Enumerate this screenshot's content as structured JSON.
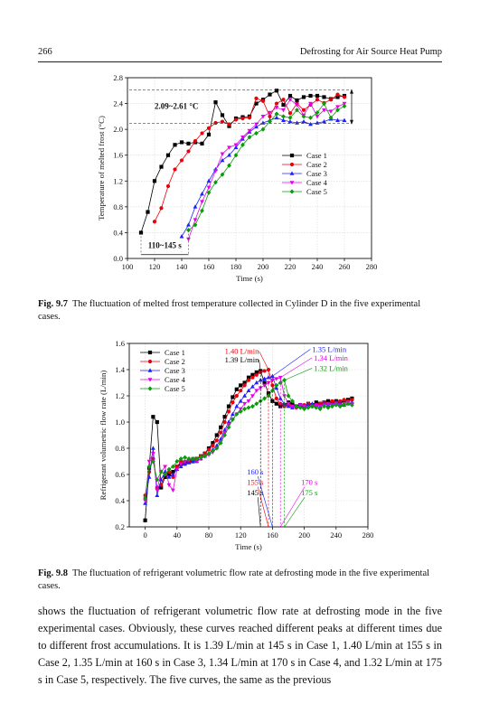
{
  "header": {
    "page_number": "266",
    "running_title": "Defrosting for Air Source Heat Pump"
  },
  "figure_9_7": {
    "caption_label": "Fig. 9.7",
    "caption_text": "The fluctuation of melted frost temperature collected in Cylinder D in the five experimental cases."
  },
  "figure_9_8": {
    "caption_label": "Fig. 9.8",
    "caption_text": "The fluctuation of refrigerant volumetric flow rate at defrosting mode in the five experimental cases."
  },
  "body_text": "shows the fluctuation of refrigerant volumetric flow rate at defrosting mode in the five experimental cases. Obviously, these curves reached different peaks at different times due to different frost accumulations. It is 1.39 L/min at 145 s in Case 1, 1.40 L/min at 155 s in Case 2, 1.35 L/min at 160 s in Case 3, 1.34 L/min at 170 s in Case 4, and 1.32 L/min at 175 s in Case 5, respectively. The five curves, the same as the previous",
  "chart_data": [
    {
      "type": "line",
      "title": "",
      "xlabel": "Time (s)",
      "ylabel": "Temperature of melted frost (°C)",
      "xlim": [
        100,
        280
      ],
      "ylim": [
        0.0,
        2.8
      ],
      "x_ticks": [
        "100",
        "120",
        "140",
        "160",
        "180",
        "200",
        "220",
        "240",
        "260",
        "280"
      ],
      "y_ticks": [
        "0.0",
        "0.4",
        "0.8",
        "1.2",
        "1.6",
        "2.0",
        "2.4",
        "2.8"
      ],
      "legend_position": "right",
      "grid": true,
      "annotations": [
        {
          "text": "2.09~2.61 °C",
          "y_range": [
            2.09,
            2.61
          ]
        },
        {
          "text": "110~145 s",
          "x_range": [
            110,
            145
          ]
        }
      ],
      "series": [
        {
          "name": "Case 1",
          "color": "#000000",
          "marker": "square",
          "x": [
            110,
            115,
            120,
            125,
            130,
            135,
            140,
            145,
            150,
            155,
            160,
            165,
            170,
            175,
            180,
            185,
            190,
            195,
            200,
            205,
            210,
            215,
            220,
            225,
            230,
            235,
            240,
            245,
            250,
            255,
            260
          ],
          "y": [
            0.4,
            0.72,
            1.2,
            1.42,
            1.6,
            1.76,
            1.8,
            1.78,
            1.8,
            1.78,
            1.92,
            2.42,
            2.22,
            2.05,
            2.17,
            2.19,
            2.2,
            2.4,
            2.46,
            2.54,
            2.6,
            2.38,
            2.52,
            2.45,
            2.5,
            2.52,
            2.52,
            2.5,
            2.47,
            2.5,
            2.52
          ]
        },
        {
          "name": "Case 2",
          "color": "#e8000b",
          "marker": "circle",
          "x": [
            120,
            125,
            130,
            135,
            140,
            145,
            150,
            155,
            160,
            165,
            170,
            175,
            180,
            185,
            190,
            195,
            200,
            205,
            210,
            215,
            220,
            225,
            230,
            235,
            240,
            245,
            250,
            255,
            260
          ],
          "y": [
            0.57,
            0.78,
            1.12,
            1.38,
            1.52,
            1.66,
            1.82,
            1.94,
            2.02,
            2.1,
            2.12,
            2.08,
            2.15,
            2.17,
            2.18,
            2.48,
            2.44,
            2.2,
            2.4,
            2.46,
            2.25,
            2.4,
            2.3,
            2.38,
            2.46,
            2.41,
            2.46,
            2.54,
            2.5
          ]
        },
        {
          "name": "Case 3",
          "color": "#1f1fff",
          "marker": "triangle-up",
          "x": [
            140,
            145,
            150,
            155,
            160,
            165,
            170,
            175,
            180,
            185,
            190,
            195,
            200,
            205,
            210,
            215,
            220,
            225,
            230,
            235,
            240,
            245,
            250,
            255,
            260
          ],
          "y": [
            0.34,
            0.52,
            0.8,
            1.0,
            1.2,
            1.38,
            1.52,
            1.6,
            1.72,
            1.85,
            1.96,
            2.04,
            2.1,
            2.14,
            2.18,
            2.14,
            2.12,
            2.1,
            2.12,
            2.08,
            2.1,
            2.12,
            2.16,
            2.14,
            2.14
          ]
        },
        {
          "name": "Case 4",
          "color": "#e800e8",
          "marker": "triangle-down",
          "x": [
            145,
            150,
            155,
            160,
            165,
            170,
            175,
            180,
            185,
            190,
            195,
            200,
            205,
            210,
            215,
            220,
            225,
            230,
            235,
            240,
            245,
            250,
            255,
            260
          ],
          "y": [
            0.3,
            0.6,
            0.88,
            1.1,
            1.36,
            1.62,
            1.72,
            1.76,
            1.88,
            1.98,
            2.08,
            2.2,
            2.26,
            2.34,
            2.3,
            2.46,
            2.38,
            2.22,
            2.4,
            2.2,
            2.3,
            2.28,
            2.35,
            2.4
          ]
        },
        {
          "name": "Case 5",
          "color": "#0a9a0a",
          "marker": "diamond",
          "x": [
            145,
            150,
            155,
            160,
            165,
            170,
            175,
            180,
            185,
            190,
            195,
            200,
            205,
            210,
            215,
            220,
            225,
            230,
            235,
            240,
            245,
            250,
            255,
            260
          ],
          "y": [
            0.44,
            0.52,
            0.74,
            1.02,
            1.18,
            1.3,
            1.44,
            1.6,
            1.76,
            1.88,
            1.94,
            2.0,
            2.12,
            2.24,
            2.2,
            2.18,
            2.3,
            2.2,
            2.18,
            2.26,
            2.4,
            2.18,
            2.3,
            2.36
          ]
        }
      ]
    },
    {
      "type": "line",
      "title": "",
      "xlabel": "Time (s)",
      "ylabel": "Refrigerant volumetric flow rate (L/min)",
      "xlim": [
        -20,
        280
      ],
      "ylim": [
        0.2,
        1.6
      ],
      "x_ticks": [
        "0",
        "40",
        "80",
        "120",
        "160",
        "200",
        "240",
        "280"
      ],
      "y_ticks": [
        "0.2",
        "0.4",
        "0.6",
        "0.8",
        "1.0",
        "1.2",
        "1.4",
        "1.6"
      ],
      "legend_position": "top-left",
      "grid": true,
      "peak_annotations": [
        {
          "label": "1.39 L/min",
          "time_label": "145 s",
          "series": "Case 1",
          "x": 145,
          "y": 1.39
        },
        {
          "label": "1.40 L/min",
          "time_label": "155 s",
          "series": "Case 2",
          "x": 155,
          "y": 1.4
        },
        {
          "label": "1.35 L/min",
          "time_label": "160 s",
          "series": "Case 3",
          "x": 160,
          "y": 1.35
        },
        {
          "label": "1.34 L/min",
          "time_label": "170 s",
          "series": "Case 4",
          "x": 170,
          "y": 1.34
        },
        {
          "label": "1.32 L/min",
          "time_label": "175 s",
          "series": "Case 5",
          "x": 175,
          "y": 1.32
        }
      ],
      "series": [
        {
          "name": "Case 1",
          "color": "#000000",
          "marker": "square",
          "x": [
            0,
            5,
            10,
            15,
            20,
            25,
            30,
            35,
            40,
            45,
            50,
            55,
            60,
            65,
            70,
            75,
            80,
            85,
            90,
            95,
            100,
            105,
            110,
            115,
            120,
            125,
            130,
            135,
            140,
            145,
            150,
            155,
            160,
            165,
            170,
            175,
            180,
            185,
            190,
            195,
            200,
            205,
            210,
            215,
            220,
            225,
            230,
            235,
            240,
            245,
            250,
            255,
            260
          ],
          "y": [
            0.25,
            0.65,
            1.04,
            1.0,
            0.5,
            0.58,
            0.6,
            0.62,
            0.66,
            0.68,
            0.69,
            0.7,
            0.7,
            0.72,
            0.74,
            0.76,
            0.8,
            0.84,
            0.9,
            0.96,
            1.04,
            1.12,
            1.19,
            1.25,
            1.28,
            1.3,
            1.34,
            1.36,
            1.38,
            1.39,
            1.3,
            1.22,
            1.16,
            1.14,
            1.12,
            1.13,
            1.15,
            1.14,
            1.12,
            1.13,
            1.12,
            1.14,
            1.13,
            1.15,
            1.14,
            1.15,
            1.16,
            1.15,
            1.16,
            1.15,
            1.16,
            1.17,
            1.18
          ]
        },
        {
          "name": "Case 2",
          "color": "#e8000b",
          "marker": "circle",
          "x": [
            0,
            5,
            10,
            15,
            20,
            25,
            30,
            35,
            40,
            45,
            50,
            55,
            60,
            65,
            70,
            75,
            80,
            85,
            90,
            95,
            100,
            105,
            110,
            115,
            120,
            125,
            130,
            135,
            140,
            145,
            150,
            155,
            160,
            165,
            170,
            175,
            180,
            185,
            190,
            195,
            200,
            205,
            210,
            215,
            220,
            225,
            230,
            235,
            240,
            245,
            250,
            255,
            260
          ],
          "y": [
            0.44,
            0.62,
            0.72,
            0.5,
            0.52,
            0.6,
            0.62,
            0.58,
            0.66,
            0.7,
            0.68,
            0.7,
            0.71,
            0.72,
            0.74,
            0.76,
            0.79,
            0.82,
            0.86,
            0.92,
            1.0,
            1.08,
            1.15,
            1.2,
            1.24,
            1.28,
            1.32,
            1.34,
            1.36,
            1.38,
            1.39,
            1.4,
            1.28,
            1.18,
            1.14,
            1.12,
            1.13,
            1.12,
            1.11,
            1.12,
            1.13,
            1.14,
            1.12,
            1.13,
            1.14,
            1.15,
            1.14,
            1.16,
            1.15,
            1.16,
            1.17,
            1.16,
            1.17
          ]
        },
        {
          "name": "Case 3",
          "color": "#1f1fff",
          "marker": "triangle-up",
          "x": [
            0,
            5,
            10,
            15,
            20,
            25,
            30,
            35,
            40,
            45,
            50,
            55,
            60,
            65,
            70,
            75,
            80,
            85,
            90,
            95,
            100,
            105,
            110,
            115,
            120,
            125,
            130,
            135,
            140,
            145,
            150,
            155,
            160,
            165,
            170,
            175,
            180,
            185,
            190,
            195,
            200,
            205,
            210,
            215,
            220,
            225,
            230,
            235,
            240,
            245,
            250,
            255,
            260
          ],
          "y": [
            0.38,
            0.58,
            0.8,
            0.44,
            0.56,
            0.62,
            0.58,
            0.6,
            0.64,
            0.66,
            0.68,
            0.69,
            0.7,
            0.7,
            0.72,
            0.74,
            0.76,
            0.79,
            0.82,
            0.87,
            0.94,
            1.0,
            1.06,
            1.12,
            1.16,
            1.2,
            1.24,
            1.27,
            1.3,
            1.32,
            1.33,
            1.34,
            1.35,
            1.26,
            1.18,
            1.14,
            1.12,
            1.11,
            1.12,
            1.13,
            1.12,
            1.13,
            1.14,
            1.13,
            1.12,
            1.14,
            1.13,
            1.14,
            1.15,
            1.14,
            1.13,
            1.14,
            1.15
          ]
        },
        {
          "name": "Case 4",
          "color": "#e800e8",
          "marker": "triangle-down",
          "x": [
            0,
            5,
            10,
            15,
            20,
            25,
            30,
            35,
            40,
            45,
            50,
            55,
            60,
            65,
            70,
            75,
            80,
            85,
            90,
            95,
            100,
            105,
            110,
            115,
            120,
            125,
            130,
            135,
            140,
            145,
            150,
            155,
            160,
            165,
            170,
            175,
            180,
            185,
            190,
            195,
            200,
            205,
            210,
            215,
            220,
            225,
            230,
            235,
            240,
            245,
            250,
            255,
            260
          ],
          "y": [
            0.4,
            0.7,
            0.76,
            0.48,
            0.62,
            0.66,
            0.52,
            0.48,
            0.64,
            0.68,
            0.7,
            0.71,
            0.72,
            0.7,
            0.72,
            0.74,
            0.75,
            0.77,
            0.8,
            0.85,
            0.92,
            0.98,
            1.02,
            1.06,
            1.1,
            1.14,
            1.16,
            1.2,
            1.24,
            1.26,
            1.28,
            1.3,
            1.32,
            1.33,
            1.34,
            1.2,
            1.14,
            1.12,
            1.11,
            1.13,
            1.12,
            1.11,
            1.12,
            1.13,
            1.12,
            1.13,
            1.14,
            1.13,
            1.14,
            1.13,
            1.14,
            1.15,
            1.14
          ]
        },
        {
          "name": "Case 5",
          "color": "#0a9a0a",
          "marker": "diamond",
          "x": [
            0,
            5,
            10,
            15,
            20,
            25,
            30,
            35,
            40,
            45,
            50,
            55,
            60,
            65,
            70,
            75,
            80,
            85,
            90,
            95,
            100,
            105,
            110,
            115,
            120,
            125,
            130,
            135,
            140,
            145,
            150,
            155,
            160,
            165,
            170,
            175,
            180,
            185,
            190,
            195,
            200,
            205,
            210,
            215,
            220,
            225,
            230,
            235,
            240,
            245,
            250,
            255,
            260
          ],
          "y": [
            0.42,
            0.66,
            0.7,
            0.56,
            0.62,
            0.6,
            0.64,
            0.66,
            0.7,
            0.72,
            0.73,
            0.72,
            0.72,
            0.72,
            0.73,
            0.74,
            0.76,
            0.78,
            0.8,
            0.84,
            0.9,
            0.96,
            1.02,
            1.06,
            1.08,
            1.1,
            1.11,
            1.12,
            1.14,
            1.16,
            1.18,
            1.2,
            1.24,
            1.28,
            1.3,
            1.32,
            1.2,
            1.16,
            1.12,
            1.11,
            1.1,
            1.11,
            1.12,
            1.11,
            1.1,
            1.12,
            1.11,
            1.12,
            1.13,
            1.12,
            1.13,
            1.14,
            1.13
          ]
        }
      ]
    }
  ]
}
